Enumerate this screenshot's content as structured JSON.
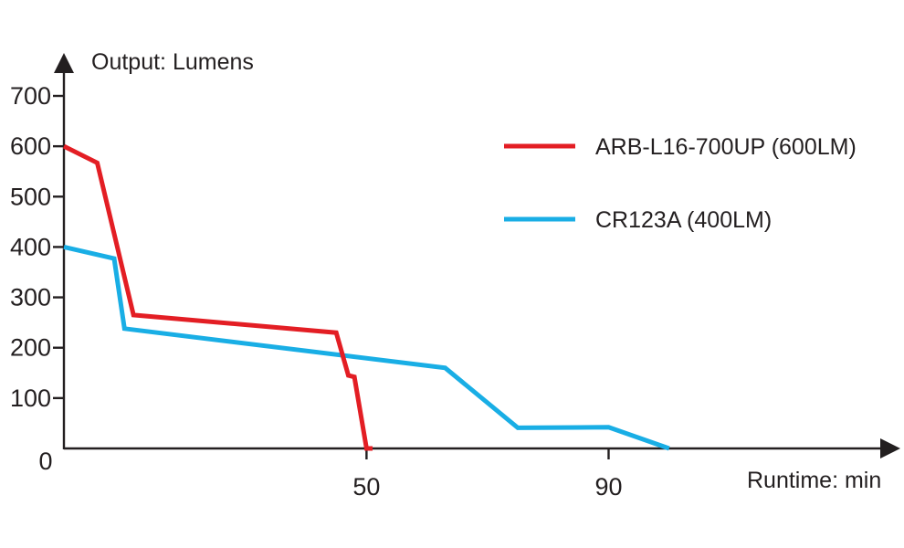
{
  "chart_data": {
    "type": "line",
    "ylabel": "Output: Lumens",
    "xlabel": "Runtime: min",
    "xlim": [
      0,
      137
    ],
    "ylim": [
      0,
      700
    ],
    "x_ticks": [
      50,
      90
    ],
    "y_ticks": [
      100,
      200,
      300,
      400,
      500,
      600,
      700
    ],
    "origin_label": "0",
    "grid": false,
    "legend_position": "top-right",
    "series": [
      {
        "name": "ARB-L16-700UP (600LM)",
        "color": "#e31e24",
        "points": [
          [
            0,
            600
          ],
          [
            5.5,
            567
          ],
          [
            11.5,
            265
          ],
          [
            45,
            230
          ],
          [
            47,
            145
          ],
          [
            48,
            142
          ],
          [
            50,
            0
          ],
          [
            51,
            0
          ]
        ]
      },
      {
        "name": "CR123A (400LM)",
        "color": "#19aee5",
        "points": [
          [
            0,
            400
          ],
          [
            8.3,
            377
          ],
          [
            10,
            238
          ],
          [
            63,
            160
          ],
          [
            75,
            41
          ],
          [
            90,
            42
          ],
          [
            100,
            0
          ]
        ]
      }
    ]
  }
}
